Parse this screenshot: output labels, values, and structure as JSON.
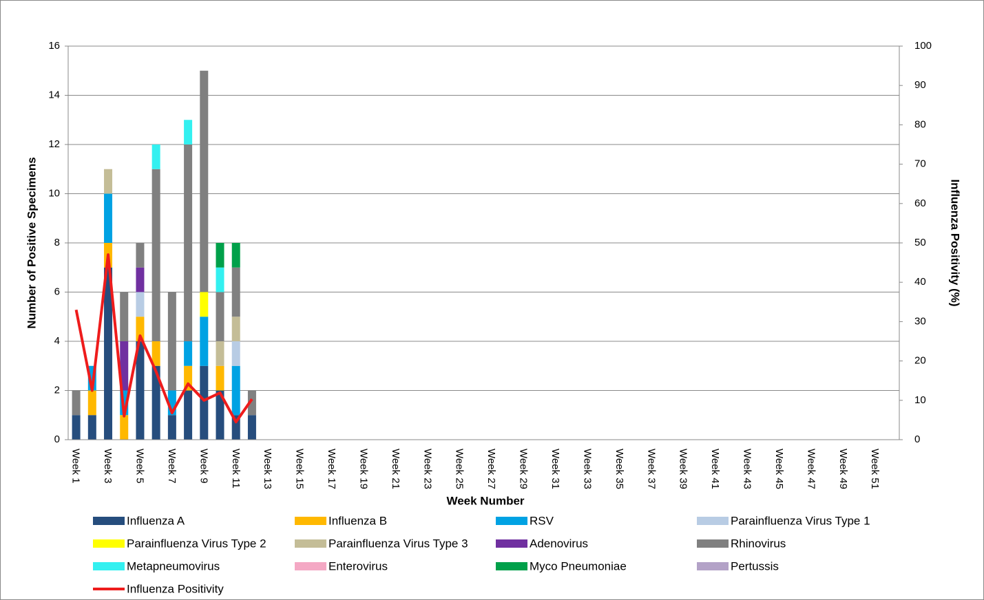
{
  "chart_data": {
    "type": "bar",
    "stacked": true,
    "y_label": "Number of Positive Specimens",
    "y2_label": "Influenza Positivity (%)",
    "x_label": "Week Number",
    "categories": [
      "Week 1",
      null,
      "Week 3",
      null,
      "Week 5",
      null,
      "Week 7",
      null,
      "Week 9",
      null,
      "Week 11",
      null,
      "Week 13",
      null,
      "Week 15",
      null,
      "Week 17",
      null,
      "Week 19",
      null,
      "Week 21",
      null,
      "Week 23",
      null,
      "Week 25",
      null,
      "Week 27",
      null,
      "Week 29",
      null,
      "Week 31",
      null,
      "Week 33",
      null,
      "Week 35",
      null,
      "Week 37",
      null,
      "Week 39",
      null,
      "Week 41",
      null,
      "Week 43",
      null,
      "Week 45",
      null,
      "Week 47",
      null,
      "Week 49",
      null,
      "Week 51",
      null
    ],
    "ylim": [
      0,
      16
    ],
    "yticks": [
      0,
      2,
      4,
      6,
      8,
      10,
      12,
      14,
      16
    ],
    "y2lim": [
      0,
      100
    ],
    "y2ticks": [
      0,
      10,
      20,
      30,
      40,
      50,
      60,
      70,
      80,
      90,
      100
    ],
    "grid": true,
    "series": [
      {
        "name": "Influenza A",
        "color": "#264d7d",
        "values": [
          1,
          1,
          7,
          0,
          4,
          3,
          1,
          2,
          3,
          2,
          1,
          1,
          null,
          null,
          null,
          null,
          null,
          null,
          null,
          null,
          null,
          null,
          null,
          null,
          null,
          null,
          null,
          null,
          null,
          null,
          null,
          null,
          null,
          null,
          null,
          null,
          null,
          null,
          null,
          null,
          null,
          null,
          null,
          null,
          null,
          null,
          null,
          null,
          null,
          null,
          null,
          null
        ]
      },
      {
        "name": "Influenza B",
        "color": "#ffb800",
        "values": [
          0,
          1,
          1,
          1,
          1,
          1,
          0,
          1,
          0,
          1,
          0,
          0,
          null,
          null,
          null,
          null,
          null,
          null,
          null,
          null,
          null,
          null,
          null,
          null,
          null,
          null,
          null,
          null,
          null,
          null,
          null,
          null,
          null,
          null,
          null,
          null,
          null,
          null,
          null,
          null,
          null,
          null,
          null,
          null,
          null,
          null,
          null,
          null,
          null,
          null,
          null,
          null
        ]
      },
      {
        "name": "RSV",
        "color": "#00a2e3",
        "values": [
          0,
          1,
          2,
          1,
          0,
          0,
          1,
          1,
          2,
          0,
          2,
          0,
          null,
          null,
          null,
          null,
          null,
          null,
          null,
          null,
          null,
          null,
          null,
          null,
          null,
          null,
          null,
          null,
          null,
          null,
          null,
          null,
          null,
          null,
          null,
          null,
          null,
          null,
          null,
          null,
          null,
          null,
          null,
          null,
          null,
          null,
          null,
          null,
          null,
          null,
          null,
          null
        ]
      },
      {
        "name": "Parainfluenza Virus Type 1",
        "color": "#b8cce4",
        "values": [
          0,
          0,
          0,
          0,
          1,
          0,
          0,
          0,
          0,
          0,
          1,
          0,
          null,
          null,
          null,
          null,
          null,
          null,
          null,
          null,
          null,
          null,
          null,
          null,
          null,
          null,
          null,
          null,
          null,
          null,
          null,
          null,
          null,
          null,
          null,
          null,
          null,
          null,
          null,
          null,
          null,
          null,
          null,
          null,
          null,
          null,
          null,
          null,
          null,
          null,
          null,
          null
        ]
      },
      {
        "name": "Parainfluenza Virus Type 2",
        "color": "#ffff00",
        "values": [
          0,
          0,
          0,
          0,
          0,
          0,
          0,
          0,
          1,
          0,
          0,
          0,
          null,
          null,
          null,
          null,
          null,
          null,
          null,
          null,
          null,
          null,
          null,
          null,
          null,
          null,
          null,
          null,
          null,
          null,
          null,
          null,
          null,
          null,
          null,
          null,
          null,
          null,
          null,
          null,
          null,
          null,
          null,
          null,
          null,
          null,
          null,
          null,
          null,
          null,
          null,
          null
        ]
      },
      {
        "name": "Parainfluenza Virus Type 3",
        "color": "#c4bd97",
        "values": [
          0,
          0,
          1,
          0,
          0,
          0,
          0,
          0,
          0,
          1,
          1,
          0,
          null,
          null,
          null,
          null,
          null,
          null,
          null,
          null,
          null,
          null,
          null,
          null,
          null,
          null,
          null,
          null,
          null,
          null,
          null,
          null,
          null,
          null,
          null,
          null,
          null,
          null,
          null,
          null,
          null,
          null,
          null,
          null,
          null,
          null,
          null,
          null,
          null,
          null,
          null,
          null
        ]
      },
      {
        "name": "Adenovirus",
        "color": "#7030a0",
        "values": [
          0,
          0,
          0,
          2,
          1,
          0,
          0,
          0,
          0,
          0,
          0,
          0,
          null,
          null,
          null,
          null,
          null,
          null,
          null,
          null,
          null,
          null,
          null,
          null,
          null,
          null,
          null,
          null,
          null,
          null,
          null,
          null,
          null,
          null,
          null,
          null,
          null,
          null,
          null,
          null,
          null,
          null,
          null,
          null,
          null,
          null,
          null,
          null,
          null,
          null,
          null,
          null
        ]
      },
      {
        "name": "Rhinovirus",
        "color": "#808080",
        "values": [
          1,
          0,
          0,
          2,
          1,
          7,
          4,
          8,
          9,
          2,
          2,
          1,
          null,
          null,
          null,
          null,
          null,
          null,
          null,
          null,
          null,
          null,
          null,
          null,
          null,
          null,
          null,
          null,
          null,
          null,
          null,
          null,
          null,
          null,
          null,
          null,
          null,
          null,
          null,
          null,
          null,
          null,
          null,
          null,
          null,
          null,
          null,
          null,
          null,
          null,
          null,
          null
        ]
      },
      {
        "name": "Metapneumovirus",
        "color": "#33f0f0",
        "values": [
          0,
          0,
          0,
          0,
          0,
          1,
          0,
          1,
          0,
          1,
          0,
          0,
          null,
          null,
          null,
          null,
          null,
          null,
          null,
          null,
          null,
          null,
          null,
          null,
          null,
          null,
          null,
          null,
          null,
          null,
          null,
          null,
          null,
          null,
          null,
          null,
          null,
          null,
          null,
          null,
          null,
          null,
          null,
          null,
          null,
          null,
          null,
          null,
          null,
          null,
          null,
          null
        ]
      },
      {
        "name": "Enterovirus",
        "color": "#f4a8c4",
        "values": [
          0,
          0,
          0,
          0,
          0,
          0,
          0,
          0,
          0,
          0,
          0,
          0,
          null,
          null,
          null,
          null,
          null,
          null,
          null,
          null,
          null,
          null,
          null,
          null,
          null,
          null,
          null,
          null,
          null,
          null,
          null,
          null,
          null,
          null,
          null,
          null,
          null,
          null,
          null,
          null,
          null,
          null,
          null,
          null,
          null,
          null,
          null,
          null,
          null,
          null,
          null,
          null
        ]
      },
      {
        "name": "Myco Pneumoniae",
        "color": "#00a04a",
        "values": [
          0,
          0,
          0,
          0,
          0,
          0,
          0,
          0,
          0,
          1,
          1,
          0,
          null,
          null,
          null,
          null,
          null,
          null,
          null,
          null,
          null,
          null,
          null,
          null,
          null,
          null,
          null,
          null,
          null,
          null,
          null,
          null,
          null,
          null,
          null,
          null,
          null,
          null,
          null,
          null,
          null,
          null,
          null,
          null,
          null,
          null,
          null,
          null,
          null,
          null,
          null,
          null
        ]
      },
      {
        "name": "Pertussis",
        "color": "#b3a2c7",
        "values": [
          0,
          0,
          0,
          0,
          0,
          0,
          0,
          0,
          0,
          0,
          0,
          0,
          null,
          null,
          null,
          null,
          null,
          null,
          null,
          null,
          null,
          null,
          null,
          null,
          null,
          null,
          null,
          null,
          null,
          null,
          null,
          null,
          null,
          null,
          null,
          null,
          null,
          null,
          null,
          null,
          null,
          null,
          null,
          null,
          null,
          null,
          null,
          null,
          null,
          null,
          null,
          null
        ]
      },
      {
        "name": "Influenza Positivity",
        "color": "#ee1c1c",
        "type": "line",
        "axis": "y2",
        "values": [
          33,
          12.5,
          47,
          6,
          26.4,
          17.3,
          6.8,
          14.2,
          10,
          11.9,
          4.5,
          10.3,
          null,
          null,
          null,
          null,
          null,
          null,
          null,
          null,
          null,
          null,
          null,
          null,
          null,
          null,
          null,
          null,
          null,
          null,
          null,
          null,
          null,
          null,
          null,
          null,
          null,
          null,
          null,
          null,
          null,
          null,
          null,
          null,
          null,
          null,
          null,
          null,
          null,
          null,
          null,
          null
        ]
      }
    ]
  }
}
